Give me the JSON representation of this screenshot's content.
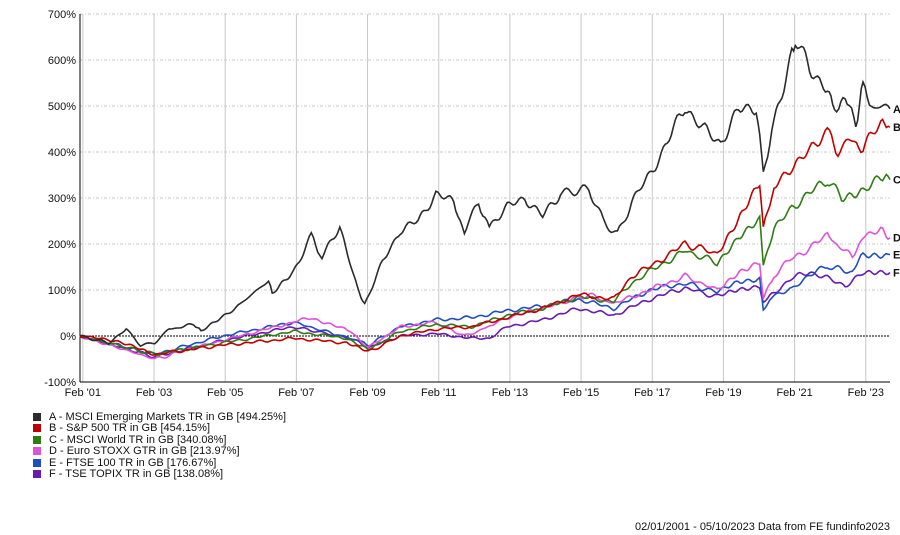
{
  "chart_data": {
    "type": "line",
    "title": "",
    "xlabel": "",
    "ylabel": "",
    "ylim": [
      -100,
      700
    ],
    "xlim": [
      2001.0,
      2023.76
    ],
    "yticks": [
      "-100%",
      "0%",
      "100%",
      "200%",
      "300%",
      "400%",
      "500%",
      "600%",
      "700%"
    ],
    "ytick_values": [
      -100,
      0,
      100,
      200,
      300,
      400,
      500,
      600,
      700
    ],
    "xticks": [
      "Feb '01",
      "Feb '03",
      "Feb '05",
      "Feb '07",
      "Feb '09",
      "Feb '11",
      "Feb '13",
      "Feb '15",
      "Feb '17",
      "Feb '19",
      "Feb '21",
      "Feb '23"
    ],
    "xtick_values": [
      2001.08,
      2003.08,
      2005.08,
      2007.08,
      2009.08,
      2011.08,
      2013.08,
      2015.08,
      2017.08,
      2019.08,
      2021.08,
      2023.08
    ],
    "grid": true,
    "legend_placement": "bottom-left",
    "series": [
      {
        "key": "A",
        "name": "A - MSCI Emerging Markets TR in GB [494.25%]",
        "color": "#2b2b2b",
        "x": [
          2001,
          2001.8,
          2002.3,
          2002.7,
          2003.1,
          2003.5,
          2004.2,
          2004.4,
          2005,
          2005.5,
          2006.3,
          2006.4,
          2007,
          2007.5,
          2007.8,
          2008.3,
          2008.8,
          2009.0,
          2009.5,
          2010,
          2010.5,
          2011,
          2011.5,
          2011.8,
          2012.2,
          2012.5,
          2013,
          2013.5,
          2014,
          2014.5,
          2015.3,
          2015.7,
          2016.1,
          2016.5,
          2017,
          2017.5,
          2018,
          2018.5,
          2019,
          2019.5,
          2020,
          2020.2,
          2020.5,
          2021,
          2021.1,
          2021.5,
          2022,
          2022.2,
          2022.5,
          2022.8,
          2023,
          2023.3,
          2023.76
        ],
        "y": [
          0,
          -15,
          15,
          -20,
          -15,
          15,
          25,
          10,
          40,
          70,
          120,
          90,
          140,
          220,
          170,
          240,
          100,
          70,
          160,
          230,
          250,
          310,
          290,
          230,
          290,
          240,
          280,
          300,
          260,
          310,
          320,
          250,
          220,
          290,
          350,
          420,
          500,
          450,
          420,
          490,
          500,
          360,
          460,
          620,
          650,
          580,
          540,
          500,
          510,
          460,
          540,
          500,
          494
        ]
      },
      {
        "key": "B",
        "name": "B - S&P 500 TR in GB [454.15%]",
        "color": "#c00000",
        "x": [
          2001,
          2002,
          2003.1,
          2005,
          2007,
          2008.5,
          2009.1,
          2010,
          2011,
          2012,
          2013,
          2014,
          2015,
          2016,
          2016.5,
          2017,
          2018,
          2018.9,
          2019.5,
          2020.1,
          2020.2,
          2020.5,
          2021,
          2021.5,
          2022,
          2022.3,
          2022.7,
          2023,
          2023.5,
          2023.76
        ],
        "y": [
          0,
          -10,
          -40,
          -20,
          -5,
          -15,
          -35,
          0,
          15,
          20,
          40,
          60,
          90,
          80,
          130,
          150,
          200,
          180,
          250,
          330,
          230,
          320,
          370,
          400,
          450,
          400,
          430,
          410,
          460,
          454
        ]
      },
      {
        "key": "C",
        "name": "C - MSCI World TR in GB [340.08%]",
        "color": "#2e7d12",
        "x": [
          2001,
          2003.1,
          2005,
          2007,
          2008.5,
          2009.1,
          2010,
          2011,
          2012,
          2013,
          2014,
          2015,
          2016,
          2016.5,
          2017,
          2018,
          2018.9,
          2019.5,
          2020.1,
          2020.2,
          2020.5,
          2021,
          2021.5,
          2022,
          2022.4,
          2023,
          2023.5,
          2023.76
        ],
        "y": [
          0,
          -40,
          -15,
          10,
          -5,
          -30,
          10,
          25,
          20,
          45,
          60,
          85,
          75,
          115,
          140,
          185,
          160,
          215,
          250,
          160,
          230,
          280,
          310,
          340,
          300,
          320,
          340,
          340
        ]
      },
      {
        "key": "D",
        "name": "D - Euro STOXX GTR in GB [213.97%]",
        "color": "#e052d8",
        "x": [
          2001,
          2003.1,
          2005,
          2007,
          2007.5,
          2008.6,
          2009.1,
          2010,
          2011,
          2011.8,
          2012.5,
          2013,
          2014,
          2015.3,
          2016,
          2017,
          2018,
          2018.9,
          2019.5,
          2020.1,
          2020.2,
          2020.5,
          2021,
          2021.5,
          2022,
          2022.7,
          2023,
          2023.5,
          2023.76
        ],
        "y": [
          0,
          -50,
          -10,
          30,
          40,
          10,
          -25,
          20,
          30,
          0,
          20,
          40,
          60,
          90,
          70,
          100,
          130,
          100,
          140,
          160,
          80,
          130,
          170,
          190,
          220,
          170,
          220,
          230,
          214
        ]
      },
      {
        "key": "E",
        "name": "E - FTSE 100 TR in GB [176.67%]",
        "color": "#1f4fbf",
        "x": [
          2001,
          2003.1,
          2005,
          2007,
          2008.8,
          2009.1,
          2010,
          2011,
          2012,
          2013,
          2014,
          2015,
          2016,
          2017,
          2018,
          2018.9,
          2019.5,
          2020.1,
          2020.2,
          2020.5,
          2021,
          2021.5,
          2022,
          2022.7,
          2023,
          2023.76
        ],
        "y": [
          0,
          -40,
          0,
          30,
          -10,
          -20,
          20,
          35,
          40,
          55,
          65,
          80,
          60,
          100,
          115,
          95,
          120,
          125,
          60,
          90,
          100,
          135,
          150,
          140,
          175,
          177
        ]
      },
      {
        "key": "F",
        "name": "F - TSE TOPIX TR in GB [138.08%]",
        "color": "#6a1ab0",
        "x": [
          2001,
          2003.1,
          2005,
          2007,
          2008.6,
          2009.1,
          2010,
          2011,
          2012,
          2012.5,
          2013,
          2014,
          2015,
          2016,
          2017,
          2018,
          2018.9,
          2019.5,
          2020.1,
          2020.2,
          2020.5,
          2021,
          2021.5,
          2022,
          2022.5,
          2023,
          2023.76
        ],
        "y": [
          0,
          -45,
          -10,
          20,
          -5,
          -25,
          0,
          5,
          -5,
          -5,
          20,
          35,
          60,
          45,
          80,
          105,
          85,
          100,
          110,
          70,
          95,
          125,
          140,
          125,
          110,
          135,
          138
        ]
      }
    ]
  },
  "footer": {
    "text": "02/01/2001 - 05/10/2023 Data from FE fundinfo2023"
  }
}
